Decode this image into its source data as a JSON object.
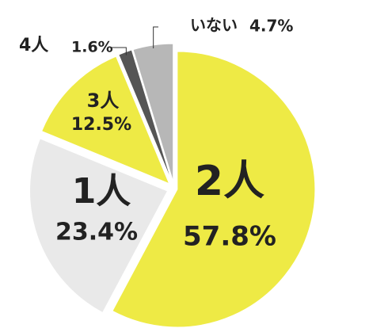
{
  "chart_data": {
    "type": "pie",
    "categories": [
      "2人",
      "1人",
      "3人",
      "4人",
      "いない"
    ],
    "values": [
      57.8,
      23.4,
      12.5,
      1.6,
      4.7
    ],
    "value_labels": [
      "57.8%",
      "23.4%",
      "12.5%",
      "1.6%",
      "4.7%"
    ],
    "colors": [
      "#eeea45",
      "#e9e9e9",
      "#eeea45",
      "#555555",
      "#b7b7b7"
    ]
  }
}
